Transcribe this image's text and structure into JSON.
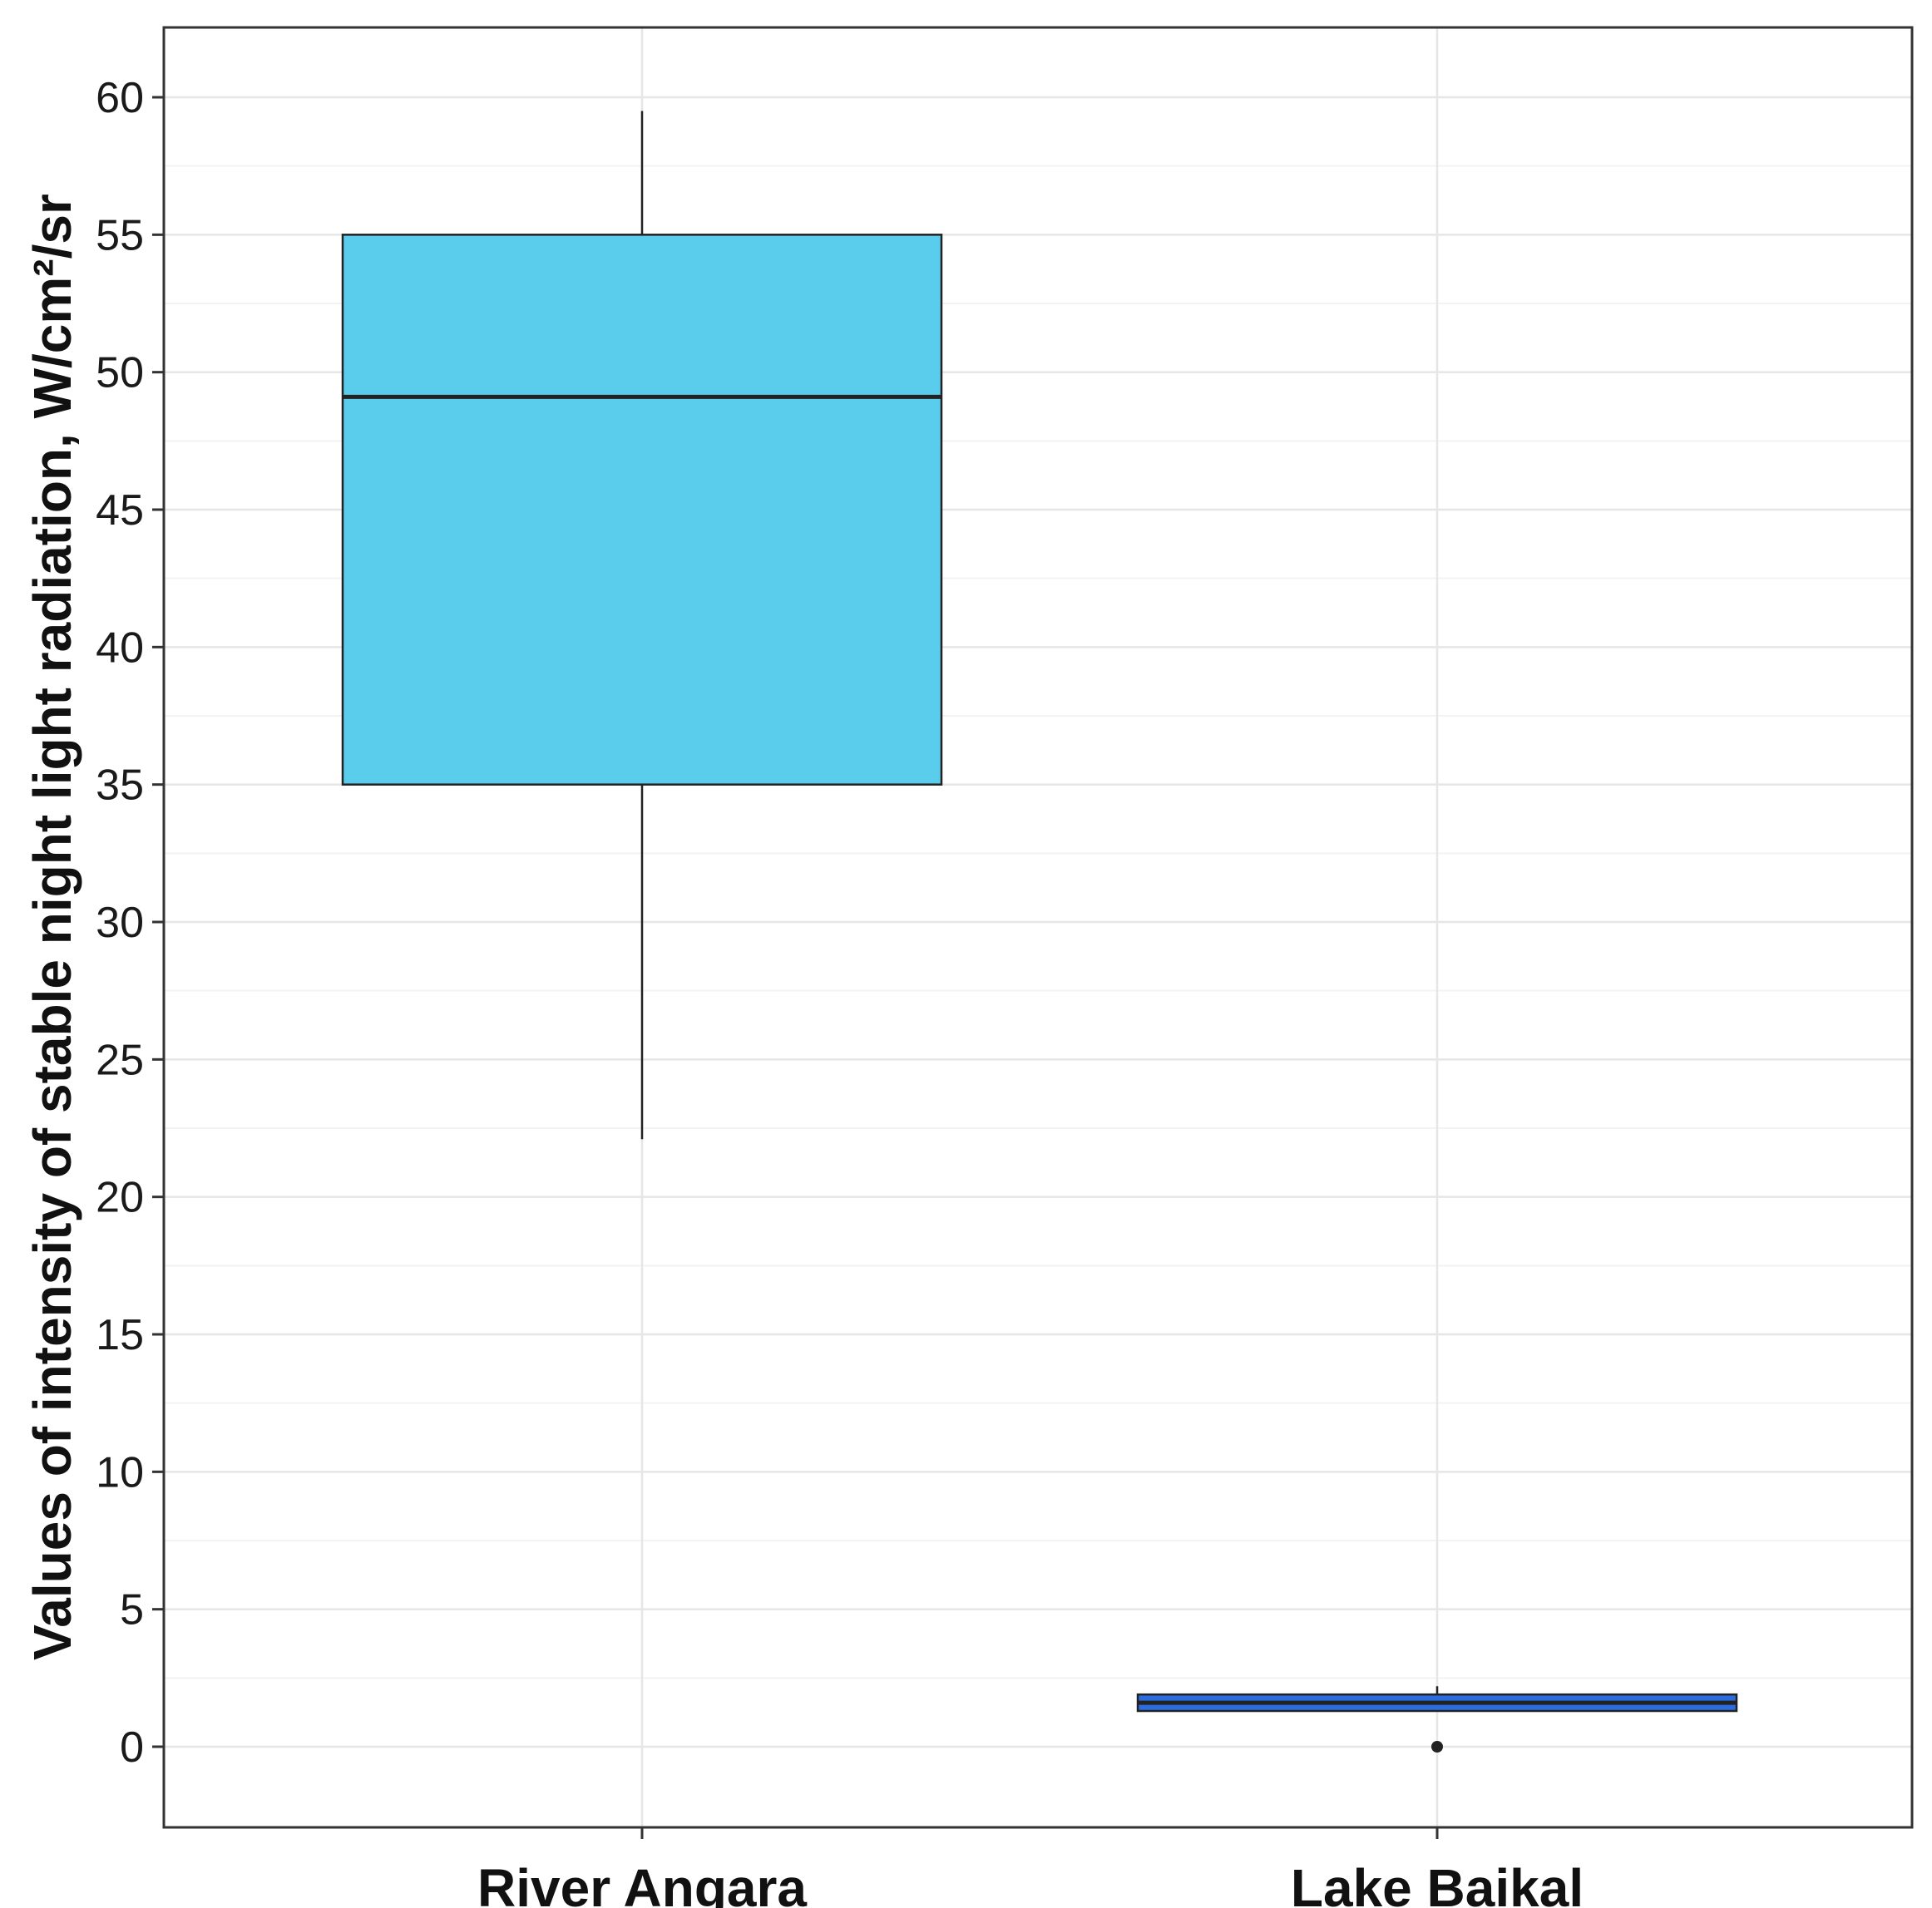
{
  "chart_data": {
    "type": "boxplot",
    "title": "",
    "xlabel": "",
    "ylabel": "Values of intensity of stable night light radiation, W/cm²/sr",
    "ylim": [
      -3,
      62.5
    ],
    "yticks": [
      0,
      5,
      10,
      15,
      20,
      25,
      30,
      35,
      40,
      45,
      50,
      55,
      60
    ],
    "grid": true,
    "categories": [
      "River Angara",
      "Lake Baikal"
    ],
    "boxes": [
      {
        "category": "River Angara",
        "whisker_low": 22.1,
        "q1": 35.0,
        "median": 49.1,
        "q3": 55.0,
        "whisker_high": 59.5,
        "outliers": [],
        "fill": "#5bcdec"
      },
      {
        "category": "Lake Baikal",
        "whisker_low": 1.3,
        "q1": 1.3,
        "median": 1.6,
        "q3": 1.9,
        "whisker_high": 2.2,
        "outliers": [
          0.0
        ],
        "fill": "#2b6de0"
      }
    ]
  }
}
